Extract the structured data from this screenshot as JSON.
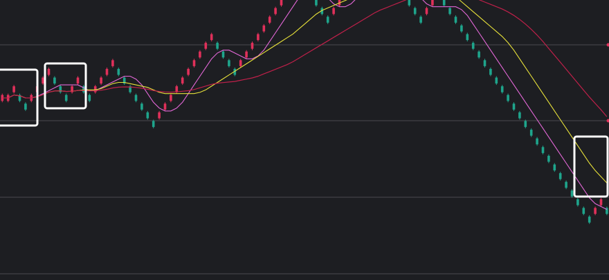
{
  "colors": {
    "background": "#1d1e22",
    "grid": "#4a4b50",
    "up": "#e0305a",
    "down": "#1fa58c",
    "ma_short": "#e468d8",
    "ma_mid": "#e8e23a",
    "ma_long": "#c0204a",
    "highlight_box": "#ffffff",
    "edge_marker": "#e0305a"
  },
  "chart_data": {
    "type": "renko",
    "title": "",
    "xlabel": "",
    "ylabel": "",
    "grid": true,
    "legend": "none",
    "bricks_y_steps": [
      0,
      0,
      1,
      0,
      -1,
      0,
      1,
      2,
      3,
      2,
      1,
      0,
      1,
      2,
      1,
      0,
      1,
      2,
      3,
      4,
      3,
      2,
      1,
      0,
      -1,
      -2,
      -3,
      -2,
      -1,
      0,
      1,
      2,
      3,
      4,
      5,
      6,
      7,
      6,
      5,
      4,
      3,
      4,
      5,
      6,
      7,
      8,
      9,
      10,
      11,
      12,
      13,
      14,
      13,
      12,
      11,
      10,
      9,
      10,
      11,
      12,
      13,
      14,
      15,
      16,
      17,
      16,
      15,
      14,
      13,
      12,
      11,
      10,
      9,
      10,
      11,
      12,
      11,
      10,
      9,
      8,
      7,
      6,
      5,
      4,
      3,
      2,
      1,
      0,
      -1,
      -2,
      -3,
      -4,
      -5,
      -6,
      -7,
      -8,
      -9,
      -10,
      -11,
      -12,
      -13,
      -14,
      -13,
      -12,
      -13
    ],
    "series": [
      {
        "name": "",
        "role": "ma_short"
      },
      {
        "name": "",
        "role": "ma_mid"
      },
      {
        "name": "",
        "role": "ma_long"
      }
    ],
    "highlights": [
      "left",
      "left-middle",
      "right-edge"
    ]
  }
}
